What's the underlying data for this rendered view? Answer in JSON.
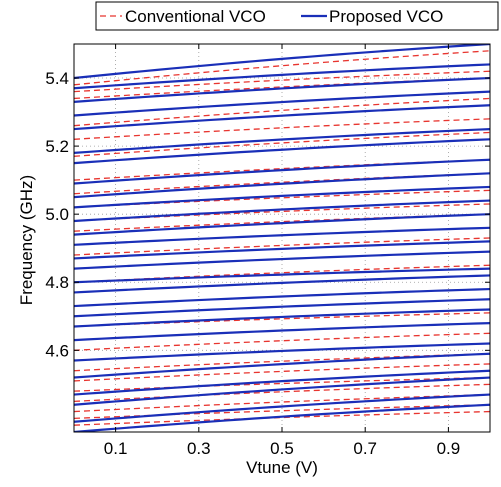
{
  "chart_data": {
    "type": "line",
    "title": "",
    "xlabel": "Vtune (V)",
    "ylabel": "Frequency (GHz)",
    "xlim": [
      0,
      1
    ],
    "ylim": [
      4.36,
      5.5
    ],
    "xticks": [
      "0.1",
      "0.3",
      "0.5",
      "0.7",
      "0.9"
    ],
    "xtick_values": [
      0.1,
      0.3,
      0.5,
      0.7,
      0.9
    ],
    "yticks": [
      "4.6",
      "4.8",
      "5.0",
      "5.2",
      "5.4"
    ],
    "ytick_values": [
      4.6,
      4.8,
      5.0,
      5.2,
      5.4
    ],
    "grid": true,
    "legend_position": "top, outside plot",
    "colors": {
      "conventional": "#e8352f",
      "proposed": "#1a2fb8"
    },
    "series": [
      {
        "name": "Conventional VCO",
        "style": "dashed",
        "color": "#e8352f",
        "curves": [
          [
            4.38,
            4.42
          ],
          [
            4.4,
            4.44
          ],
          [
            4.42,
            4.47
          ],
          [
            4.45,
            4.5
          ],
          [
            4.48,
            4.52
          ],
          [
            4.51,
            4.56
          ],
          [
            4.54,
            4.59
          ],
          [
            4.6,
            4.65
          ],
          [
            4.63,
            4.68
          ],
          [
            4.67,
            4.71
          ],
          [
            4.7,
            4.75
          ],
          [
            4.73,
            4.78
          ],
          [
            4.77,
            4.82
          ],
          [
            4.8,
            4.85
          ],
          [
            4.84,
            4.89
          ],
          [
            4.88,
            4.93
          ],
          [
            4.91,
            4.96
          ],
          [
            4.95,
            5.0
          ],
          [
            4.98,
            5.03
          ],
          [
            5.02,
            5.07
          ],
          [
            5.06,
            5.12
          ],
          [
            5.1,
            5.16
          ],
          [
            5.17,
            5.24
          ],
          [
            5.22,
            5.28
          ],
          [
            5.26,
            5.34
          ],
          [
            5.34,
            5.4
          ],
          [
            5.36,
            5.42
          ],
          [
            5.38,
            5.48
          ]
        ]
      },
      {
        "name": "Proposed VCO",
        "style": "solid",
        "color": "#1a2fb8",
        "curves": [
          [
            4.36,
            4.44
          ],
          [
            4.39,
            4.47
          ],
          [
            4.44,
            4.52
          ],
          [
            4.47,
            4.54
          ],
          [
            4.52,
            4.59
          ],
          [
            4.57,
            4.62
          ],
          [
            4.63,
            4.68
          ],
          [
            4.67,
            4.72
          ],
          [
            4.7,
            4.75
          ],
          [
            4.73,
            4.78
          ],
          [
            4.77,
            4.82
          ],
          [
            4.8,
            4.84
          ],
          [
            4.84,
            4.89
          ],
          [
            4.87,
            4.92
          ],
          [
            4.91,
            4.96
          ],
          [
            4.94,
            5.0
          ],
          [
            4.98,
            5.04
          ],
          [
            5.02,
            5.08
          ],
          [
            5.05,
            5.12
          ],
          [
            5.09,
            5.16
          ],
          [
            5.15,
            5.22
          ],
          [
            5.18,
            5.25
          ],
          [
            5.25,
            5.32
          ],
          [
            5.29,
            5.36
          ],
          [
            5.33,
            5.4
          ],
          [
            5.37,
            5.44
          ],
          [
            5.4,
            5.5
          ]
        ]
      }
    ]
  }
}
